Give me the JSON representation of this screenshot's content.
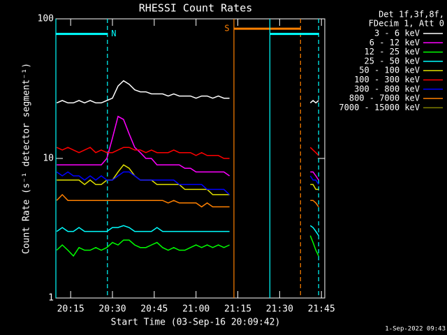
{
  "chart_data": {
    "type": "line",
    "title": "RHESSI Count Rates",
    "x_label": "Start Time (03-Sep-16 20:09:42)",
    "y_label": "Count Rate (s⁻¹ detector segment⁻¹)",
    "legend_header": [
      "Det 1f,3f,8f,",
      "FDecim 1, Att 0"
    ],
    "footer": "1-Sep-2022 09:43",
    "log_y": true,
    "legend": "outside-right",
    "xlim": [
      9.7,
      106.2
    ],
    "ylim": [
      1,
      100
    ],
    "xticks": [
      {
        "value": 15,
        "label": "20:15"
      },
      {
        "value": 30,
        "label": "20:30"
      },
      {
        "value": 45,
        "label": "20:45"
      },
      {
        "value": 60,
        "label": "21:00"
      },
      {
        "value": 75,
        "label": "21:15"
      },
      {
        "value": 90,
        "label": "21:30"
      },
      {
        "value": 105,
        "label": "21:45"
      }
    ],
    "yticks": [
      1,
      10,
      100
    ],
    "x": [
      10,
      12,
      14,
      16,
      18,
      20,
      22,
      24,
      26,
      28,
      30,
      32,
      34,
      36,
      38,
      40,
      42,
      44,
      46,
      48,
      50,
      52,
      54,
      56,
      58,
      60,
      62,
      64,
      66,
      68,
      70,
      72,
      87,
      101,
      102,
      103,
      104
    ],
    "series": [
      {
        "name": "3 - 6 keV",
        "color": "#ffffff",
        "values": [
          25,
          26,
          25,
          25,
          26,
          25,
          26,
          25,
          25,
          26,
          27,
          33,
          36,
          34,
          31,
          30,
          30,
          29,
          29,
          29,
          28,
          29,
          28,
          28,
          28,
          27,
          28,
          28,
          27,
          28,
          27,
          27,
          null,
          25,
          26,
          25,
          26
        ]
      },
      {
        "name": "6 - 12 keV",
        "color": "#ff00ff",
        "values": [
          9,
          9,
          9,
          9,
          9,
          9,
          9,
          9,
          9,
          10,
          14,
          20,
          19,
          15,
          12,
          11,
          10,
          10,
          9,
          9,
          9,
          9,
          9,
          8.5,
          8.5,
          8,
          8,
          8,
          8,
          8,
          8,
          7.5,
          null,
          8,
          8,
          7.5,
          7
        ]
      },
      {
        "name": "12 - 25 keV",
        "color": "#00ff00",
        "values": [
          2.2,
          2.4,
          2.2,
          2,
          2.3,
          2.2,
          2.2,
          2.3,
          2.2,
          2.3,
          2.5,
          2.4,
          2.6,
          2.6,
          2.4,
          2.3,
          2.3,
          2.4,
          2.5,
          2.3,
          2.2,
          2.3,
          2.2,
          2.2,
          2.3,
          2.4,
          2.3,
          2.4,
          2.3,
          2.4,
          2.3,
          2.4,
          null,
          2.8,
          2.5,
          2.2,
          2
        ]
      },
      {
        "name": "25 - 50 keV",
        "color": "#00ffff",
        "values": [
          3,
          3.2,
          3,
          3,
          3.2,
          3,
          3,
          3,
          3,
          3,
          3.2,
          3.2,
          3.3,
          3.2,
          3,
          3,
          3,
          3,
          3.2,
          3,
          3,
          3,
          3,
          3,
          3,
          3,
          3,
          3,
          3,
          3,
          3,
          3,
          null,
          3.3,
          3.2,
          3,
          2.8
        ]
      },
      {
        "name": "50 - 100 keV",
        "color": "#e0e000",
        "values": [
          7,
          7,
          7,
          7,
          7,
          6.5,
          7,
          6.5,
          6.5,
          7,
          7,
          8,
          9,
          8.5,
          7.5,
          7,
          7,
          7,
          6.5,
          6.5,
          6.5,
          6.5,
          6.5,
          6,
          6,
          6,
          6,
          6,
          5.5,
          5.5,
          5.5,
          5.5,
          null,
          6.5,
          6.5,
          6,
          6
        ]
      },
      {
        "name": "100 - 300 keV",
        "color": "#ff0000",
        "values": [
          12,
          11.5,
          12,
          11.5,
          11,
          11.5,
          12,
          11,
          11.5,
          11,
          11,
          11.5,
          12,
          12,
          11.5,
          11.5,
          11,
          11.5,
          11,
          11,
          11,
          11.5,
          11,
          11,
          11,
          10.5,
          11,
          10.5,
          10.5,
          10.5,
          10,
          10,
          null,
          12,
          11.5,
          11,
          10.5
        ]
      },
      {
        "name": "300 - 800 keV",
        "color": "#0000ff",
        "values": [
          8,
          7.5,
          8,
          7.5,
          7.5,
          7,
          7.5,
          7,
          7.5,
          7,
          7,
          7.5,
          8,
          8,
          7.5,
          7,
          7,
          7,
          7,
          7,
          7,
          7,
          6.5,
          6.5,
          6.5,
          6.5,
          6.5,
          6,
          6,
          6,
          6,
          5.5,
          null,
          7.5,
          7,
          7,
          6.5
        ]
      },
      {
        "name": "800 - 7000 keV",
        "color": "#ff8000",
        "values": [
          5,
          5.5,
          5,
          5,
          5,
          5,
          5,
          5,
          5,
          5,
          5,
          5,
          5,
          5,
          5,
          5,
          5,
          5,
          5,
          5,
          4.8,
          5,
          4.8,
          4.8,
          4.8,
          4.8,
          4.5,
          4.8,
          4.5,
          4.5,
          4.5,
          4.5,
          null,
          5,
          5,
          4.8,
          4.5
        ]
      },
      {
        "name": "7000 - 15000 keV",
        "color": "#808000",
        "values": [
          null,
          null,
          null,
          null,
          null,
          null,
          null,
          null,
          null,
          null,
          null,
          null,
          null,
          null,
          null,
          null,
          null,
          null,
          null,
          null,
          null,
          null,
          null,
          null,
          null,
          null,
          null,
          null,
          null,
          null,
          null,
          null,
          null,
          null,
          null,
          null,
          null
        ]
      }
    ],
    "annotations": [
      {
        "text": "N",
        "x": [
          9.7,
          28.2
        ],
        "y": 78,
        "color": "#00ffff"
      },
      {
        "text": "S",
        "x": [
          73.6,
          97.5
        ],
        "y": 85,
        "color": "#ff8000"
      },
      {
        "x": [
          86.5,
          104
        ],
        "y": 78,
        "color": "#00ffff"
      }
    ]
  }
}
